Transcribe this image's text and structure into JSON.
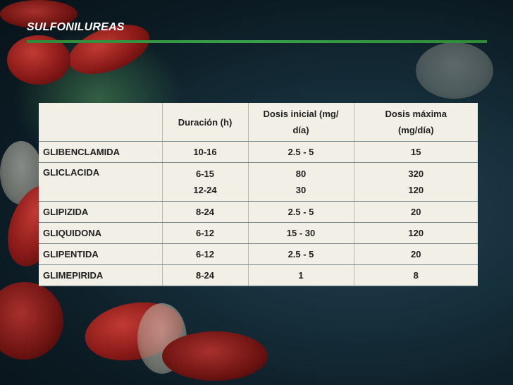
{
  "title": "SULFONILUREAS",
  "colors": {
    "title_rule": "#3aa04a",
    "table_bg": "#f2f0e6",
    "text": "#202020"
  },
  "table": {
    "headers": [
      "",
      "Duración (h)",
      "Dosis inicial (mg/ día)",
      "Dosis máxima (mg/día)"
    ],
    "header_lines": [
      [],
      [
        "Duración (h)"
      ],
      [
        "Dosis inicial (mg/",
        "día)"
      ],
      [
        "Dosis máxima",
        "(mg/día)"
      ]
    ],
    "rows": [
      {
        "name": "GLIBENCLAMIDA",
        "duracion": [
          "10-16"
        ],
        "dosis_inicial": [
          "2.5 - 5"
        ],
        "dosis_maxima": [
          "15"
        ]
      },
      {
        "name": "GLICLACIDA",
        "duracion": [
          "6-15",
          "12-24"
        ],
        "dosis_inicial": [
          "80",
          "30"
        ],
        "dosis_maxima": [
          "320",
          "120"
        ]
      },
      {
        "name": "GLIPIZIDA",
        "duracion": [
          "8-24"
        ],
        "dosis_inicial": [
          "2.5 - 5"
        ],
        "dosis_maxima": [
          "20"
        ]
      },
      {
        "name": "GLIQUIDONA",
        "duracion": [
          "6-12"
        ],
        "dosis_inicial": [
          "15 - 30"
        ],
        "dosis_maxima": [
          "120"
        ]
      },
      {
        "name": "GLIPENTIDA",
        "duracion": [
          "6-12"
        ],
        "dosis_inicial": [
          "2.5 - 5"
        ],
        "dosis_maxima": [
          "20"
        ]
      },
      {
        "name": "GLIMEPIRIDA",
        "duracion": [
          "8-24"
        ],
        "dosis_inicial": [
          "1"
        ],
        "dosis_maxima": [
          "8"
        ]
      }
    ]
  }
}
